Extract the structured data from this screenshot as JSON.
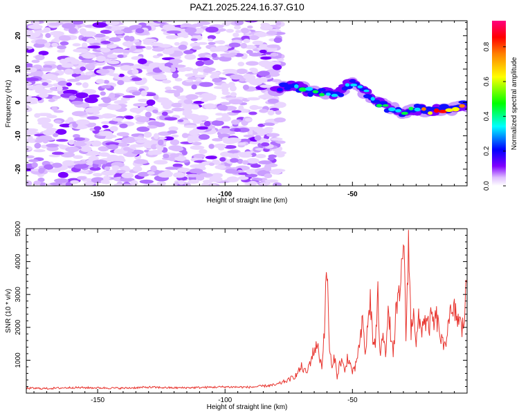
{
  "title": "PAZ1.2025.224.16.37.G10",
  "chart_data": [
    {
      "type": "heatmap",
      "xlabel": "Height of straight line (km)",
      "ylabel": "Frequency (Hz)",
      "xlim": [
        -178,
        -5
      ],
      "ylim": [
        -25,
        24.5
      ],
      "x_ticks": [
        -150,
        -100,
        -50
      ],
      "y_ticks": [
        -20,
        -10,
        0,
        10,
        20
      ],
      "colorbar": {
        "label": "Normalized spectral amplitude",
        "range": [
          0,
          0.95
        ],
        "ticks": [
          0.0,
          0.2,
          0.4,
          0.6,
          0.8
        ],
        "colors": [
          "#ffffff",
          "#e0c0ff",
          "#8000ff",
          "#0000ff",
          "#00ffff",
          "#00ff00",
          "#ffff00",
          "#ff8000",
          "#ff0000",
          "#ff0080"
        ]
      },
      "noise_region_x": [
        -178,
        -78
      ],
      "ridge": {
        "x": [
          -80,
          -75,
          -70,
          -65,
          -60,
          -55,
          -50,
          -45,
          -40,
          -35,
          -30,
          -25,
          -20,
          -15,
          -10,
          -5
        ],
        "freq": [
          4,
          5,
          4.5,
          3,
          2.5,
          3,
          6,
          3,
          0,
          -2,
          -3,
          -2,
          -2.5,
          -2,
          -1.5,
          -0.5
        ],
        "amplitude": [
          0.15,
          0.3,
          0.45,
          0.5,
          0.45,
          0.3,
          0.5,
          0.35,
          0.4,
          0.45,
          0.4,
          0.5,
          0.75,
          0.8,
          0.75,
          0.7
        ]
      }
    },
    {
      "type": "line",
      "xlabel": "Height of straight line (km)",
      "ylabel": "SNR (10 * v/v)",
      "xlim": [
        -178,
        -5
      ],
      "ylim": [
        0,
        5000
      ],
      "x_ticks": [
        -150,
        -100,
        -50
      ],
      "y_ticks": [
        1000,
        2000,
        3000,
        4000,
        5000
      ],
      "series": [
        {
          "color": "#e8342e",
          "x": [
            -178,
            -170,
            -160,
            -150,
            -140,
            -130,
            -120,
            -110,
            -100,
            -90,
            -80,
            -75,
            -72,
            -70,
            -68,
            -66,
            -64,
            -62,
            -61,
            -60,
            -59,
            -58,
            -57,
            -56,
            -55,
            -54,
            -53,
            -52,
            -51,
            -50,
            -49,
            -48,
            -47,
            -46,
            -45,
            -44,
            -43,
            -42,
            -41,
            -40,
            -39,
            -38,
            -37,
            -36,
            -35,
            -34,
            -33,
            -32,
            -31,
            -30,
            -29,
            -28,
            -27,
            -26,
            -25,
            -24,
            -23,
            -22,
            -21,
            -20,
            -19,
            -18,
            -17,
            -16,
            -15,
            -14,
            -13,
            -12,
            -11,
            -10,
            -9,
            -8,
            -7,
            -6,
            -5
          ],
          "y": [
            150,
            140,
            170,
            160,
            150,
            180,
            160,
            170,
            190,
            180,
            250,
            400,
            550,
            800,
            600,
            1100,
            1500,
            800,
            2000,
            3800,
            1400,
            700,
            1100,
            500,
            900,
            1000,
            600,
            1100,
            900,
            650,
            700,
            1200,
            1500,
            2200,
            1200,
            2000,
            2900,
            1600,
            1500,
            2900,
            1000,
            2000,
            1300,
            2300,
            1900,
            1100,
            2400,
            2700,
            3200,
            5000,
            1700,
            4700,
            1800,
            2700,
            1500,
            2200,
            1900,
            2300,
            2100,
            2000,
            2300,
            2100,
            2300,
            1900,
            1600,
            1300,
            1800,
            2500,
            2200,
            2500,
            2300,
            2200,
            1900,
            2400,
            3600
          ]
        }
      ]
    }
  ]
}
